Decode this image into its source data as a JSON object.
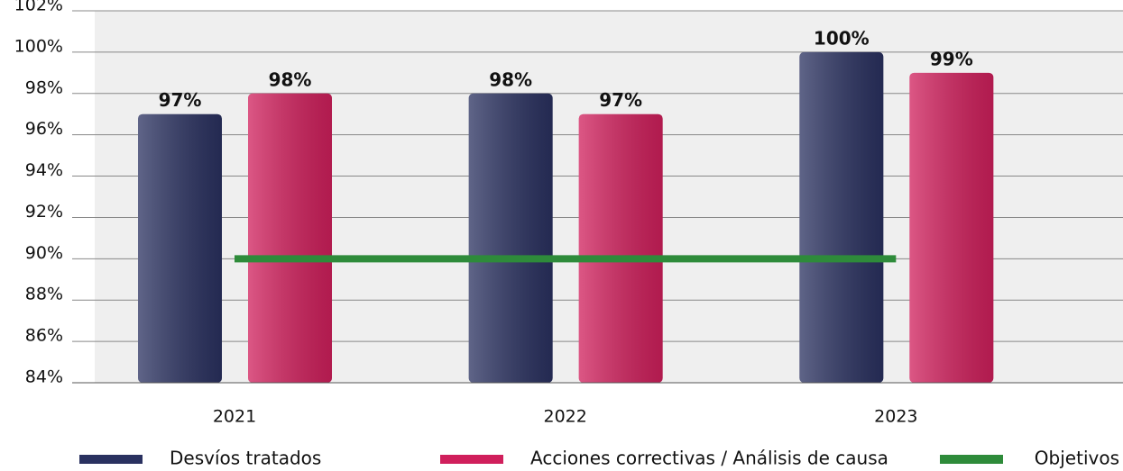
{
  "chart_data": {
    "type": "bar",
    "categories": [
      "2021",
      "2022",
      "2023"
    ],
    "series": [
      {
        "name": "Desvíos tratados",
        "color": "#2a3160",
        "values": [
          97,
          98,
          100
        ],
        "value_labels": [
          "97%",
          "98%",
          "100%"
        ]
      },
      {
        "name": "Acciones correctivas / Análisis de causa",
        "color": "#d01f5c",
        "values": [
          98,
          97,
          99
        ],
        "value_labels": [
          "98%",
          "97%",
          "99%"
        ]
      },
      {
        "name": "Objetivos",
        "color": "#2e8b3a",
        "type": "line",
        "values": [
          90,
          90,
          90
        ]
      }
    ],
    "ylim": [
      84,
      102
    ],
    "yticks": [
      {
        "value": 84,
        "label": "84%"
      },
      {
        "value": 86,
        "label": "86%"
      },
      {
        "value": 88,
        "label": "88%"
      },
      {
        "value": 90,
        "label": "90%"
      },
      {
        "value": 92,
        "label": "92%"
      },
      {
        "value": 94,
        "label": "94%"
      },
      {
        "value": 96,
        "label": "96%"
      },
      {
        "value": 98,
        "label": "98%"
      },
      {
        "value": 100,
        "label": "100%"
      },
      {
        "value": 102,
        "label": "102%"
      }
    ],
    "grid": true,
    "legend": "bottom"
  }
}
